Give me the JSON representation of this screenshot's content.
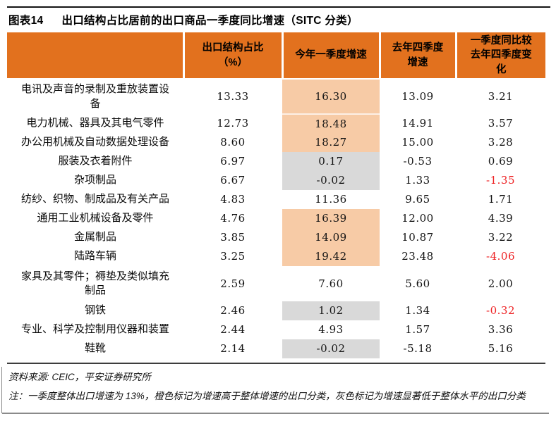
{
  "title": {
    "tag": "图表14",
    "text": "出口结构占比居前的出口商品一季度同比增速（SITC 分类）"
  },
  "colors": {
    "header_orange": "#E2711E",
    "highlight_orange": "#F7CBA6",
    "highlight_gray": "#D9D9D9",
    "negative_red": "#EE2224"
  },
  "table": {
    "headers": [
      "",
      "出口结构占比\n（%）",
      "今年一季度增速",
      "去年四季度\n增速",
      "一季度同比较\n去年四季度变\n化"
    ],
    "rows": [
      {
        "category": "电讯及声音的录制及重放装置设\n备",
        "share": "13.33",
        "q1_growth": "16.30",
        "q4_growth": "13.09",
        "change": "3.21",
        "highlight": "orange"
      },
      {
        "category": "电力机械、器具及其电气零件",
        "share": "12.73",
        "q1_growth": "18.48",
        "q4_growth": "14.91",
        "change": "3.57",
        "highlight": "orange"
      },
      {
        "category": "办公用机械及自动数据处理设备",
        "share": "8.60",
        "q1_growth": "18.27",
        "q4_growth": "15.00",
        "change": "3.28",
        "highlight": "orange"
      },
      {
        "category": "服装及衣着附件",
        "share": "6.97",
        "q1_growth": "0.17",
        "q4_growth": "-0.53",
        "change": "0.69",
        "highlight": "gray"
      },
      {
        "category": "杂项制品",
        "share": "6.67",
        "q1_growth": "-0.02",
        "q4_growth": "1.33",
        "change": "-1.35",
        "highlight": "gray"
      },
      {
        "category": "纺纱、织物、制成品及有关产品",
        "share": "4.83",
        "q1_growth": "11.36",
        "q4_growth": "9.65",
        "change": "1.71",
        "highlight": "none"
      },
      {
        "category": "通用工业机械设备及零件",
        "share": "4.76",
        "q1_growth": "16.39",
        "q4_growth": "12.00",
        "change": "4.39",
        "highlight": "orange"
      },
      {
        "category": "金属制品",
        "share": "3.85",
        "q1_growth": "14.09",
        "q4_growth": "10.87",
        "change": "3.22",
        "highlight": "orange"
      },
      {
        "category": "陆路车辆",
        "share": "3.25",
        "q1_growth": "19.42",
        "q4_growth": "23.48",
        "change": "-4.06",
        "highlight": "orange"
      },
      {
        "category": "家具及其零件；褥垫及类似填充\n制品",
        "share": "2.59",
        "q1_growth": "7.60",
        "q4_growth": "5.60",
        "change": "2.00",
        "highlight": "none"
      },
      {
        "category": "钢铁",
        "share": "2.46",
        "q1_growth": "1.02",
        "q4_growth": "1.34",
        "change": "-0.32",
        "highlight": "gray"
      },
      {
        "category": "专业、科学及控制用仪器和装置",
        "share": "2.44",
        "q1_growth": "4.93",
        "q4_growth": "1.57",
        "change": "3.36",
        "highlight": "none"
      },
      {
        "category": "鞋靴",
        "share": "2.14",
        "q1_growth": "-0.02",
        "q4_growth": "-5.18",
        "change": "5.16",
        "highlight": "gray"
      }
    ]
  },
  "source": "资料来源: CEIC，平安证券研究所",
  "note": "注：一季度整体出口增速为 13%，橙色标记为增速高于整体增速的出口分类，灰色标记为增速显著低于整体水平的出口分类"
}
